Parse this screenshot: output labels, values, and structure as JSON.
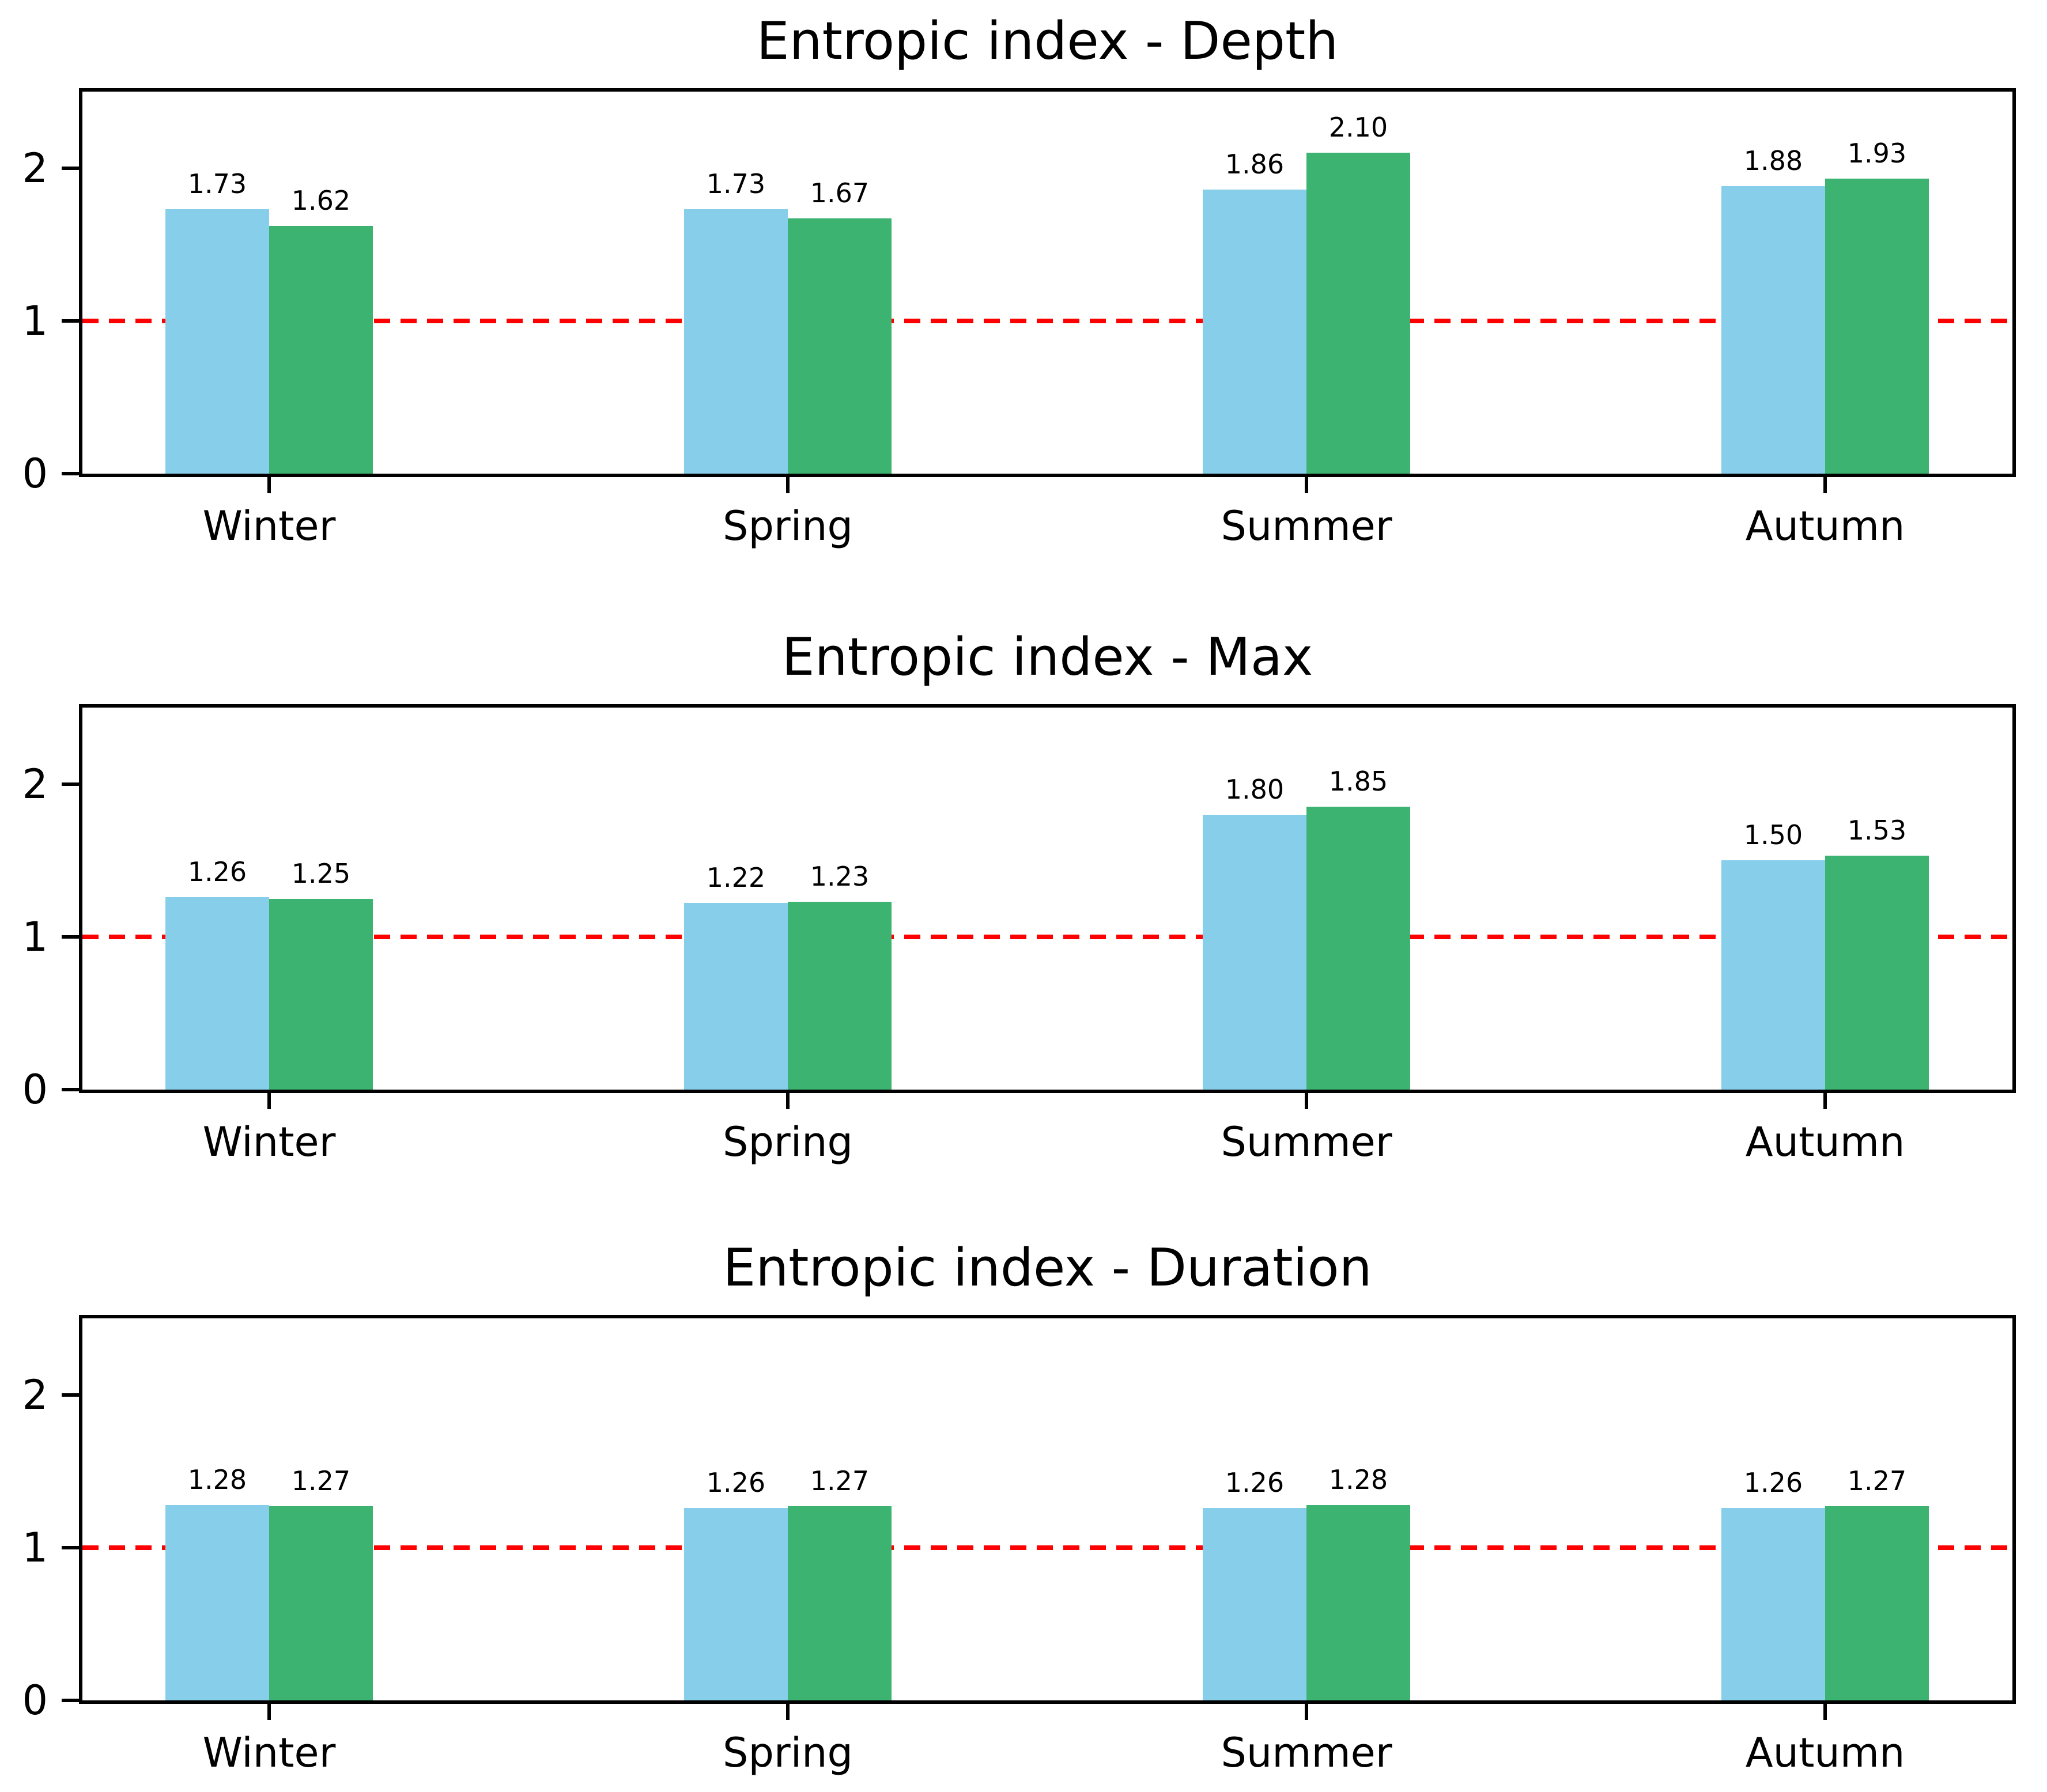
{
  "figure": {
    "background_color": "#ffffff",
    "series_colors": {
      "blue": "#87CEEB",
      "green": "#3CB371"
    },
    "reference_line_color": "#ff0000"
  },
  "chart_data": [
    {
      "type": "bar",
      "title": "Entropic index - Depth",
      "categories": [
        "Winter",
        "Spring",
        "Summer",
        "Autumn"
      ],
      "series": [
        {
          "name": "blue",
          "color": "#87CEEB",
          "values": [
            1.73,
            1.73,
            1.86,
            1.88
          ],
          "labels": [
            "1.73",
            "1.73",
            "1.86",
            "1.88"
          ]
        },
        {
          "name": "green",
          "color": "#3CB371",
          "values": [
            1.62,
            1.67,
            2.1,
            1.93
          ],
          "labels": [
            "1.62",
            "1.67",
            "2.10",
            "1.93"
          ]
        }
      ],
      "y_ticks": [
        0,
        1,
        2
      ],
      "y_tick_labels": [
        "0",
        "1",
        "2"
      ],
      "ylim": [
        0,
        2.5
      ],
      "reference_line": {
        "y": 1,
        "color": "#ff0000",
        "style": "dashed"
      },
      "legend": "none",
      "grid": false
    },
    {
      "type": "bar",
      "title": "Entropic index - Max",
      "categories": [
        "Winter",
        "Spring",
        "Summer",
        "Autumn"
      ],
      "series": [
        {
          "name": "blue",
          "color": "#87CEEB",
          "values": [
            1.26,
            1.22,
            1.8,
            1.5
          ],
          "labels": [
            "1.26",
            "1.22",
            "1.80",
            "1.50"
          ]
        },
        {
          "name": "green",
          "color": "#3CB371",
          "values": [
            1.25,
            1.23,
            1.85,
            1.53
          ],
          "labels": [
            "1.25",
            "1.23",
            "1.85",
            "1.53"
          ]
        }
      ],
      "y_ticks": [
        0,
        1,
        2
      ],
      "y_tick_labels": [
        "0",
        "1",
        "2"
      ],
      "ylim": [
        0,
        2.5
      ],
      "reference_line": {
        "y": 1,
        "color": "#ff0000",
        "style": "dashed"
      },
      "legend": "none",
      "grid": false
    },
    {
      "type": "bar",
      "title": "Entropic index - Duration",
      "categories": [
        "Winter",
        "Spring",
        "Summer",
        "Autumn"
      ],
      "series": [
        {
          "name": "blue",
          "color": "#87CEEB",
          "values": [
            1.28,
            1.26,
            1.26,
            1.26
          ],
          "labels": [
            "1.28",
            "1.26",
            "1.26",
            "1.26"
          ]
        },
        {
          "name": "green",
          "color": "#3CB371",
          "values": [
            1.27,
            1.27,
            1.28,
            1.27
          ],
          "labels": [
            "1.27",
            "1.27",
            "1.28",
            "1.27"
          ]
        }
      ],
      "y_ticks": [
        0,
        1,
        2
      ],
      "y_tick_labels": [
        "0",
        "1",
        "2"
      ],
      "ylim": [
        0,
        2.5
      ],
      "reference_line": {
        "y": 1,
        "color": "#ff0000",
        "style": "dashed"
      },
      "legend": "none",
      "grid": false
    }
  ]
}
